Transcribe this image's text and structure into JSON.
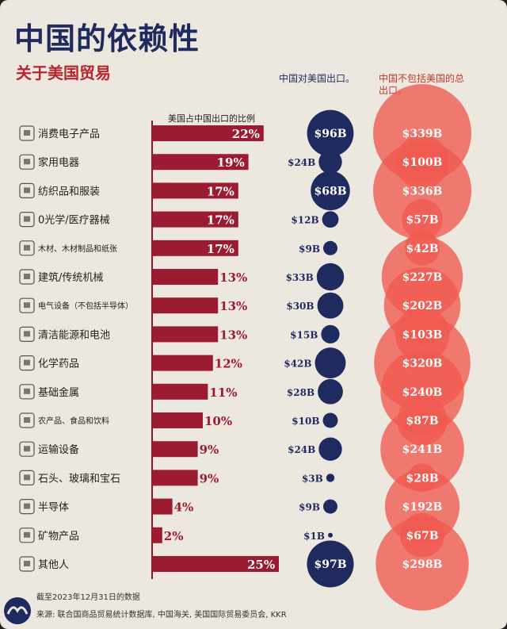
{
  "header": {
    "title": "中国的依赖性",
    "subtitle": "关于美国贸易"
  },
  "columns": {
    "bar_header": "美国占中国出口的比例",
    "us_header": "中国对美国出口。",
    "total_header_line1": "中国不包括美国的总",
    "total_header_line2": "出口。"
  },
  "footer": {
    "date": "截至2023年12月31日的数据",
    "source": "来源: 联合国商品贸易统计数据库, 中国海关, 美国国际贸易委员会, KKR"
  },
  "colors": {
    "navy": "#1f2a5e",
    "bar": "#9b1b30",
    "bubble": "#f05a4f",
    "bubble_dark": "#e0352b",
    "background": "#ede8df"
  },
  "chart_data": {
    "type": "bar",
    "categories": [
      "消费电子产品",
      "家用电器",
      "纺织品和服装",
      "0光学/医疗器械",
      "木材、木材制品和纸张",
      "建筑/传统机械",
      "电气设备（不包括半导体）",
      "清洁能源和电池",
      "化学药品",
      "基础金属",
      "农产品、食品和饮料",
      "运输设备",
      "石头、玻璃和宝石",
      "半导体",
      "矿物产品",
      "其他人"
    ],
    "icons": [
      "monitor-icon",
      "appliance-icon",
      "shirt-icon",
      "medical-icon",
      "wood-icon",
      "machinery-icon",
      "electric-icon",
      "battery-icon",
      "flask-icon",
      "metal-icon",
      "food-icon",
      "truck-icon",
      "gem-icon",
      "chip-icon",
      "mineral-icon",
      "other-icon"
    ],
    "series": [
      {
        "name": "美国占中国出口的比例",
        "values": [
          22,
          19,
          17,
          17,
          17,
          13,
          13,
          13,
          12,
          11,
          10,
          9,
          9,
          4,
          2,
          25
        ],
        "labels": [
          "22%",
          "19%",
          "17%",
          "17%",
          "17%",
          "13%",
          "13%",
          "13%",
          "12%",
          "11%",
          "10%",
          "9%",
          "9%",
          "4%",
          "2%",
          "25%"
        ]
      },
      {
        "name": "中国对美国出口。",
        "values": [
          96,
          24,
          68,
          12,
          9,
          33,
          30,
          15,
          42,
          28,
          10,
          24,
          3,
          9,
          1,
          97
        ],
        "labels": [
          "$96B",
          "$24B",
          "$68B",
          "$12B",
          "$9B",
          "$33B",
          "$30B",
          "$15B",
          "$42B",
          "$28B",
          "$10B",
          "$24B",
          "$3B",
          "$9B",
          "$1B",
          "$97B"
        ]
      },
      {
        "name": "中国不包括美国的总出口。",
        "values": [
          339,
          100,
          336,
          57,
          42,
          227,
          202,
          103,
          320,
          240,
          87,
          241,
          28,
          192,
          67,
          298
        ],
        "labels": [
          "$339B",
          "$100B",
          "$336B",
          "$57B",
          "$42B",
          "$227B",
          "$202B",
          "$103B",
          "$320B",
          "$240B",
          "$87B",
          "$241B",
          "$28B",
          "$192B",
          "$67B",
          "$298B"
        ]
      }
    ]
  }
}
